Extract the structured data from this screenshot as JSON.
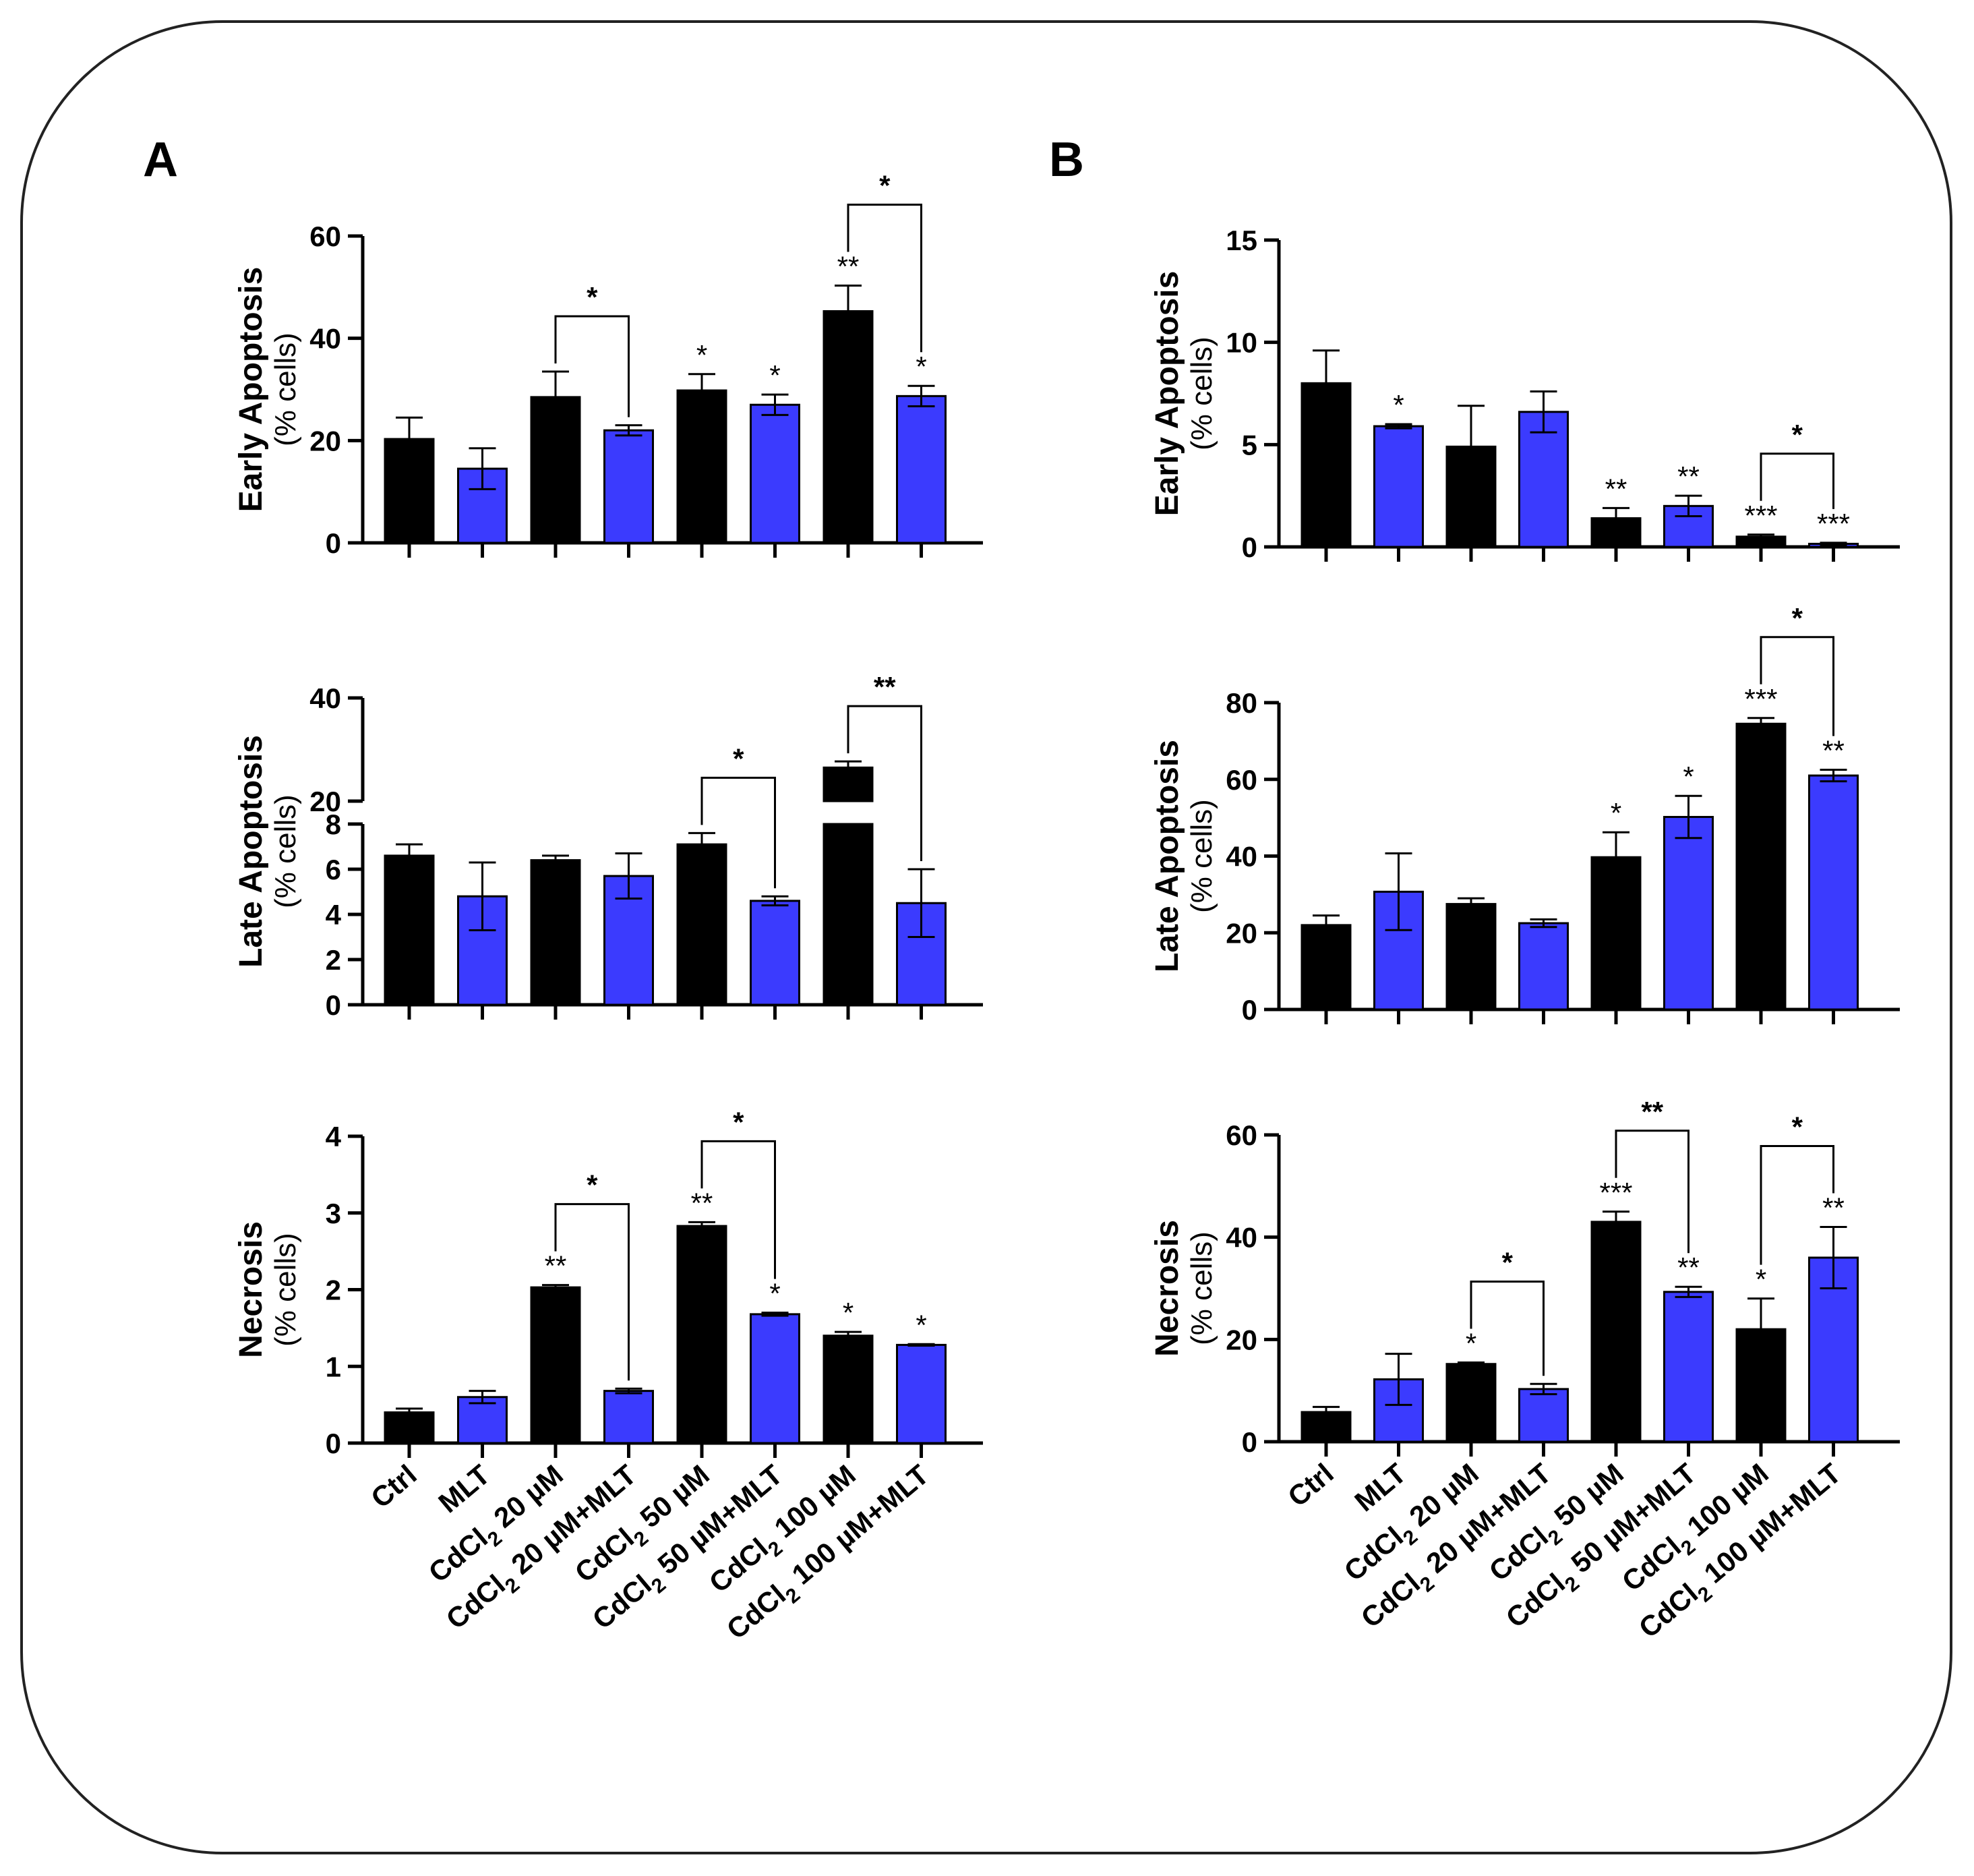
{
  "panel_letters": [
    "A",
    "B"
  ],
  "styles": {
    "black_bar": "#000000",
    "blue_bar": "#3b3bfe",
    "axis": "#000000"
  },
  "xlabels": [
    {
      "pre": "Ctrl",
      "sub": "",
      "post": ""
    },
    {
      "pre": "MLT",
      "sub": "",
      "post": ""
    },
    {
      "pre": "CdCl",
      "sub": "2",
      "post": " 20 µM"
    },
    {
      "pre": "CdCl",
      "sub": "2",
      "post": " 20 µM+MLT"
    },
    {
      "pre": "CdCl",
      "sub": "2",
      "post": " 50 µM"
    },
    {
      "pre": "CdCl",
      "sub": "2",
      "post": " 50 µM+MLT"
    },
    {
      "pre": "CdCl",
      "sub": "2",
      "post": " 100 µM"
    },
    {
      "pre": "CdCl",
      "sub": "2",
      "post": " 100 µM+MLT"
    }
  ],
  "chart_data": [
    {
      "id": "A-early",
      "panel": "A",
      "type": "bar",
      "ylabel": "Early Apoptosis",
      "ylabel2": "(% cells)",
      "ylim": [
        0,
        60
      ],
      "yticks": [
        0,
        20,
        40,
        60
      ],
      "categories": [
        "Ctrl",
        "MLT",
        "CdCl2 20 µM",
        "CdCl2 20 µM+MLT",
        "CdCl2 50 µM",
        "CdCl2 50 µM+MLT",
        "CdCl2 100 µM",
        "CdCl2 100 µM+MLT"
      ],
      "values": [
        20.3,
        14.5,
        28.5,
        22.0,
        29.8,
        27.0,
        45.3,
        28.7
      ],
      "errors": [
        4.2,
        4.0,
        5.0,
        1.0,
        3.2,
        2.0,
        5.0,
        2.0
      ],
      "sig": [
        "",
        "",
        "",
        "",
        "*",
        "*",
        "**",
        "*"
      ],
      "brackets": [
        {
          "from": 2,
          "to": 3,
          "label": "*"
        },
        {
          "from": 6,
          "to": 7,
          "label": "*"
        }
      ]
    },
    {
      "id": "A-late",
      "panel": "A",
      "type": "bar",
      "ylabel": "Late Apoptosis",
      "ylabel2": "(% cells)",
      "ylim": [
        0,
        40
      ],
      "yticks": [
        0,
        2,
        4,
        6,
        8,
        20,
        40
      ],
      "axis_break": {
        "lower": [
          0,
          8
        ],
        "upper": [
          20,
          40
        ]
      },
      "categories": [
        "Ctrl",
        "MLT",
        "CdCl2 20 µM",
        "CdCl2 20 µM+MLT",
        "CdCl2 50 µM",
        "CdCl2 50 µM+MLT",
        "CdCl2 100 µM",
        "CdCl2 100 µM+MLT"
      ],
      "values": [
        6.6,
        4.8,
        6.4,
        5.7,
        7.1,
        4.6,
        26.5,
        4.5
      ],
      "errors": [
        0.5,
        1.5,
        0.2,
        1.0,
        0.5,
        0.2,
        1.2,
        1.5
      ],
      "sig": [
        "",
        "",
        "",
        "",
        "",
        "",
        "",
        ""
      ],
      "brackets": [
        {
          "from": 4,
          "to": 5,
          "label": "*"
        },
        {
          "from": 6,
          "to": 7,
          "label": "**"
        }
      ]
    },
    {
      "id": "A-nec",
      "panel": "A",
      "type": "bar",
      "ylabel": "Necrosis",
      "ylabel2": "(% cells)",
      "ylim": [
        0,
        4
      ],
      "yticks": [
        0,
        1,
        2,
        3,
        4
      ],
      "categories": [
        "Ctrl",
        "MLT",
        "CdCl2 20 µM",
        "CdCl2 20 µM+MLT",
        "CdCl2 50 µM",
        "CdCl2 50 µM+MLT",
        "CdCl2 100 µM",
        "CdCl2 100 µM+MLT"
      ],
      "values": [
        0.4,
        0.6,
        2.03,
        0.68,
        2.83,
        1.68,
        1.4,
        1.28
      ],
      "errors": [
        0.05,
        0.08,
        0.03,
        0.03,
        0.05,
        0.02,
        0.05,
        0.01
      ],
      "sig": [
        "",
        "",
        "**",
        "",
        "**",
        "*",
        "*",
        "*"
      ],
      "brackets": [
        {
          "from": 2,
          "to": 3,
          "label": "*"
        },
        {
          "from": 4,
          "to": 5,
          "label": "*"
        }
      ]
    },
    {
      "id": "B-early",
      "panel": "B",
      "type": "bar",
      "ylabel": "Early Apoptosis",
      "ylabel2": "(% cells)",
      "ylim": [
        0,
        15
      ],
      "yticks": [
        0,
        5,
        10,
        15
      ],
      "categories": [
        "Ctrl",
        "MLT",
        "CdCl2 20 µM",
        "CdCl2 20 µM+MLT",
        "CdCl2 50 µM",
        "CdCl2 50 µM+MLT",
        "CdCl2 100 µM",
        "CdCl2 100 µM+MLT"
      ],
      "values": [
        8.0,
        5.9,
        4.9,
        6.6,
        1.4,
        2.0,
        0.5,
        0.15
      ],
      "errors": [
        1.6,
        0.1,
        2.0,
        1.0,
        0.5,
        0.5,
        0.1,
        0.05
      ],
      "sig": [
        "",
        "*",
        "",
        "",
        "**",
        "**",
        "***",
        "***"
      ],
      "brackets": [
        {
          "from": 6,
          "to": 7,
          "label": "*"
        }
      ]
    },
    {
      "id": "B-late",
      "panel": "B",
      "type": "bar",
      "ylabel": "Late Apoptosis",
      "ylabel2": "(% cells)",
      "ylim": [
        0,
        80
      ],
      "yticks": [
        0,
        20,
        40,
        60,
        80
      ],
      "categories": [
        "Ctrl",
        "MLT",
        "CdCl2 20 µM",
        "CdCl2 20 µM+MLT",
        "CdCl2 50 µM",
        "CdCl2 50 µM+MLT",
        "CdCl2 100 µM",
        "CdCl2 100 µM+MLT"
      ],
      "values": [
        22.0,
        30.7,
        27.5,
        22.5,
        39.7,
        50.2,
        74.5,
        61.0
      ],
      "errors": [
        2.5,
        10.0,
        1.5,
        1.0,
        6.5,
        5.5,
        1.5,
        1.5
      ],
      "sig": [
        "",
        "",
        "",
        "",
        "*",
        "*",
        "***",
        "**"
      ],
      "brackets": [
        {
          "from": 6,
          "to": 7,
          "label": "*"
        }
      ]
    },
    {
      "id": "B-nec",
      "panel": "B",
      "type": "bar",
      "ylabel": "Necrosis",
      "ylabel2": "(% cells)",
      "ylim": [
        0,
        60
      ],
      "yticks": [
        0,
        20,
        40,
        60
      ],
      "categories": [
        "Ctrl",
        "MLT",
        "CdCl2 20 µM",
        "CdCl2 20 µM+MLT",
        "CdCl2 50 µM",
        "CdCl2 50 µM+MLT",
        "CdCl2 100 µM",
        "CdCl2 100 µM+MLT"
      ],
      "values": [
        5.8,
        12.2,
        15.2,
        10.3,
        43.0,
        29.3,
        22.0,
        36.0
      ],
      "errors": [
        1.0,
        5.0,
        0.3,
        1.0,
        2.0,
        1.0,
        6.0,
        6.0
      ],
      "sig": [
        "",
        "",
        "*",
        "",
        "***",
        "**",
        "*",
        "**"
      ],
      "brackets": [
        {
          "from": 2,
          "to": 3,
          "label": "*"
        },
        {
          "from": 4,
          "to": 5,
          "label": "**"
        },
        {
          "from": 6,
          "to": 7,
          "label": "*"
        }
      ]
    }
  ]
}
